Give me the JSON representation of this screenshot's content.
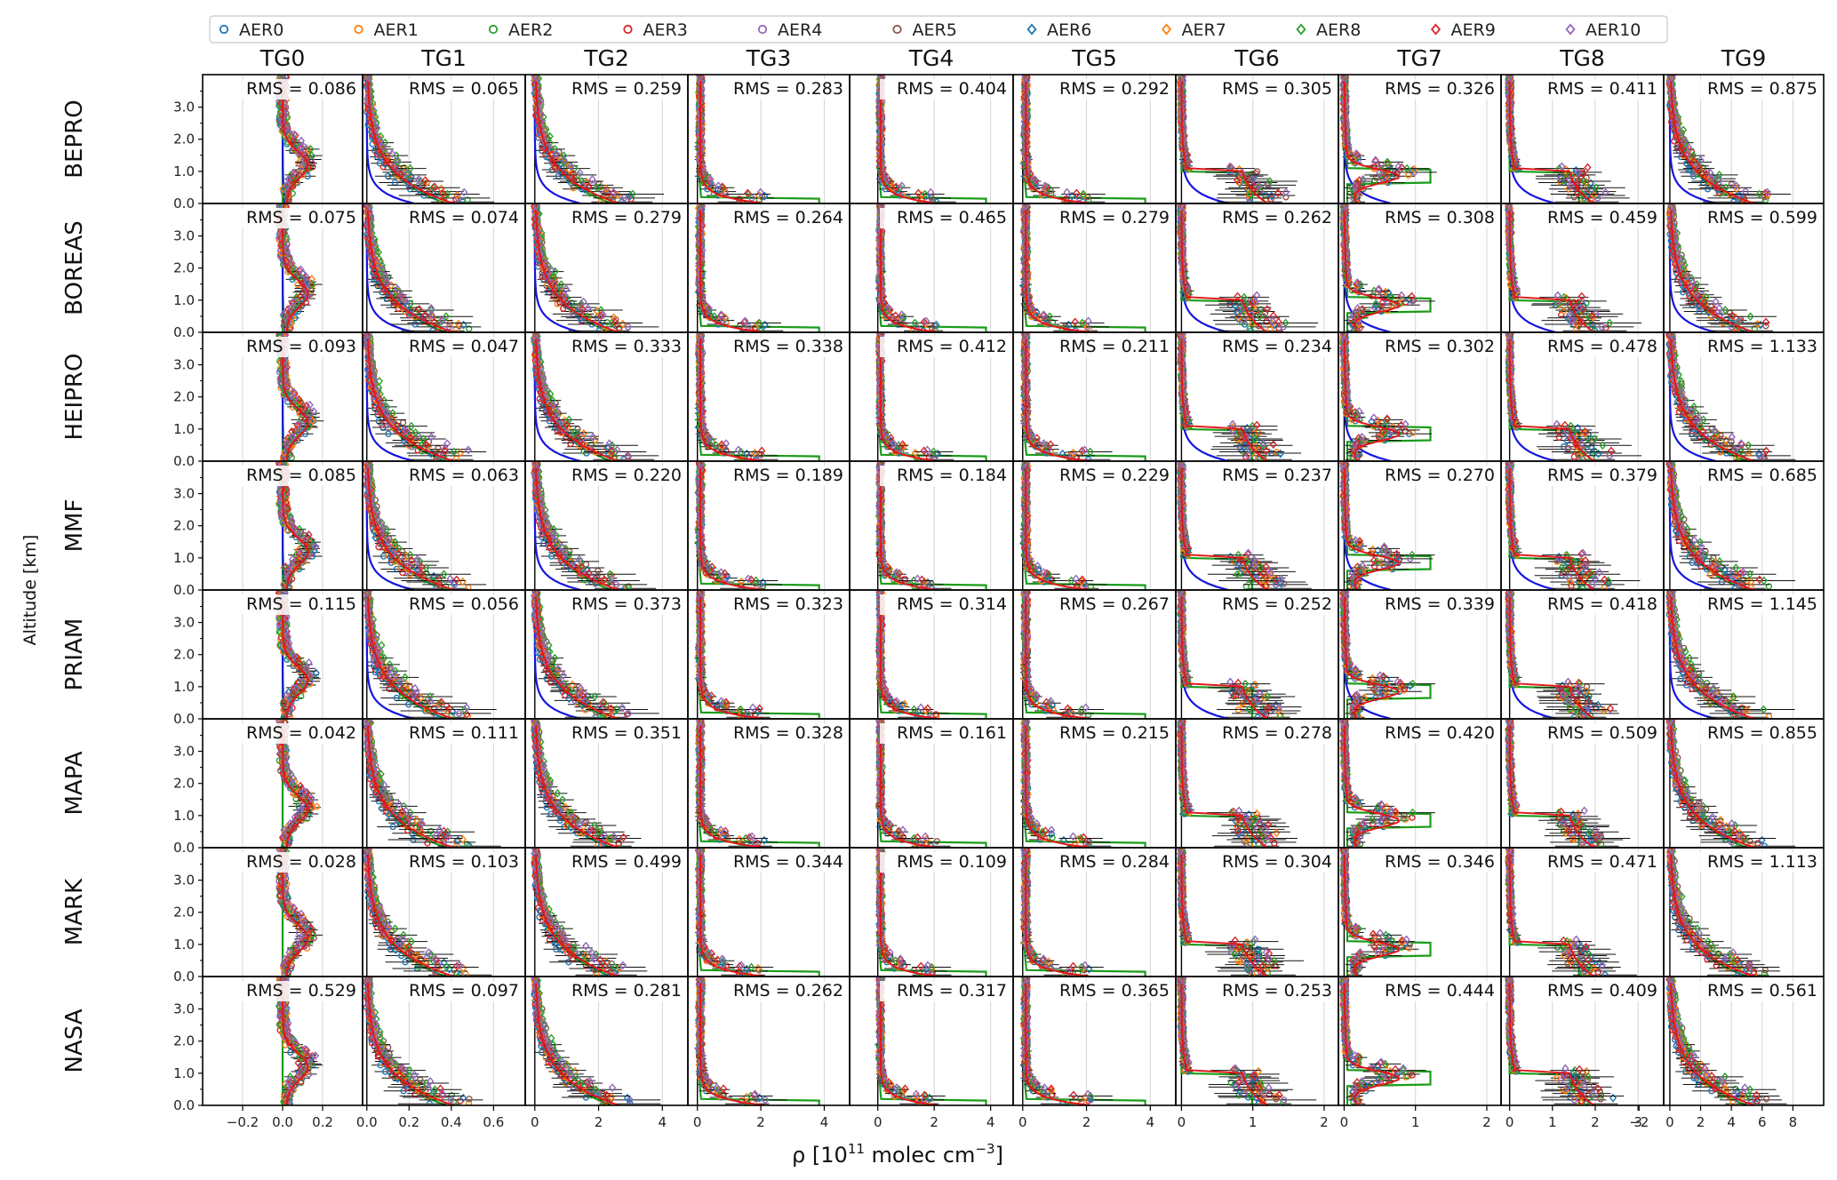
{
  "chart_data": {
    "type": "line",
    "ylabel": "Altitude [km]",
    "xlabel": "ρ [10",
    "xlabel_exp": "11",
    "xlabel_unit": " molec cm",
    "xlabel_unit_exp": "−3",
    "xlabel_close": "]",
    "ylim": [
      0,
      3.9
    ],
    "yticks": [
      "0.0",
      "1.0",
      "2.0",
      "3.0"
    ],
    "legend": {
      "placement": "top",
      "entries": [
        {
          "name": "AER0",
          "color": "#1f77b4",
          "marker": "circle"
        },
        {
          "name": "AER1",
          "color": "#ff7f0e",
          "marker": "circle"
        },
        {
          "name": "AER2",
          "color": "#2ca02c",
          "marker": "circle"
        },
        {
          "name": "AER3",
          "color": "#d62728",
          "marker": "circle"
        },
        {
          "name": "AER4",
          "color": "#9467bd",
          "marker": "circle"
        },
        {
          "name": "AER5",
          "color": "#8c564b",
          "marker": "circle"
        },
        {
          "name": "AER6",
          "color": "#1f77b4",
          "marker": "diamond"
        },
        {
          "name": "AER7",
          "color": "#ff7f0e",
          "marker": "diamond"
        },
        {
          "name": "AER8",
          "color": "#2ca02c",
          "marker": "diamond"
        },
        {
          "name": "AER9",
          "color": "#d62728",
          "marker": "diamond"
        },
        {
          "name": "AER10",
          "color": "#9467bd",
          "marker": "diamond"
        }
      ]
    },
    "rows": [
      "BEPRO",
      "BOREAS",
      "HEIPRO",
      "MMF",
      "PRIAM",
      "MAPA",
      "MARK",
      "NASA"
    ],
    "columns": [
      {
        "title": "TG0",
        "xlim": [
          -0.4,
          0.4
        ],
        "ticks": [
          -0.2,
          0,
          0.2
        ],
        "tick_labels": [
          "−0.2",
          "0.0",
          "0.2"
        ],
        "shape": "center"
      },
      {
        "title": "TG1",
        "xlim": [
          -0.02,
          0.75
        ],
        "ticks": [
          0,
          0.2,
          0.4,
          0.6
        ],
        "tick_labels": [
          "0.0",
          "0.2",
          "0.4",
          "0.6"
        ],
        "shape": "exp"
      },
      {
        "title": "TG2",
        "xlim": [
          -0.3,
          4.8
        ],
        "ticks": [
          0,
          2,
          4
        ],
        "tick_labels": [
          "0",
          "2",
          "4"
        ],
        "shape": "exp"
      },
      {
        "title": "TG3",
        "xlim": [
          -0.3,
          4.8
        ],
        "ticks": [
          0,
          2,
          4
        ],
        "tick_labels": [
          "0",
          "2",
          "4"
        ],
        "shape": "surface"
      },
      {
        "title": "TG4",
        "xlim": [
          -1.0,
          4.8
        ],
        "ticks": [
          0,
          2,
          4
        ],
        "tick_labels": [
          "0",
          "2",
          "4"
        ],
        "shape": "surface"
      },
      {
        "title": "TG5",
        "xlim": [
          -0.3,
          4.8
        ],
        "ticks": [
          0,
          2,
          4
        ],
        "tick_labels": [
          "0",
          "2",
          "4"
        ],
        "shape": "surface"
      },
      {
        "title": "TG6",
        "xlim": [
          -0.08,
          2.2
        ],
        "ticks": [
          0,
          1,
          2
        ],
        "tick_labels": [
          "0",
          "1",
          "2"
        ],
        "shape": "box"
      },
      {
        "title": "TG7",
        "xlim": [
          -0.08,
          2.2
        ],
        "ticks": [
          0,
          1,
          2
        ],
        "tick_labels": [
          "0",
          "1",
          "2"
        ],
        "shape": "elevated"
      },
      {
        "title": "TG8",
        "xlim": [
          -0.2,
          3.6
        ],
        "ticks": [
          0,
          1,
          2,
          3
        ],
        "tick_labels": [
          "0",
          "1",
          "2",
          "3"
        ],
        "shape": "box"
      },
      {
        "title": "TG9",
        "xlim": [
          -0.4,
          10.0
        ],
        "ticks": [
          -2,
          0,
          2,
          4,
          6,
          8
        ],
        "tick_labels": [
          "−2",
          "0",
          "2",
          "4",
          "6",
          "8"
        ],
        "shape": "exp"
      }
    ],
    "rms_values": [
      [
        "0.086",
        "0.065",
        "0.259",
        "0.283",
        "0.404",
        "0.292",
        "0.305",
        "0.326",
        "0.411",
        "0.875"
      ],
      [
        "0.075",
        "0.074",
        "0.279",
        "0.264",
        "0.465",
        "0.279",
        "0.262",
        "0.308",
        "0.459",
        "0.599"
      ],
      [
        "0.093",
        "0.047",
        "0.333",
        "0.338",
        "0.412",
        "0.211",
        "0.234",
        "0.302",
        "0.478",
        "1.133"
      ],
      [
        "0.085",
        "0.063",
        "0.220",
        "0.189",
        "0.184",
        "0.229",
        "0.237",
        "0.270",
        "0.379",
        "0.685"
      ],
      [
        "0.115",
        "0.056",
        "0.373",
        "0.323",
        "0.314",
        "0.267",
        "0.252",
        "0.339",
        "0.418",
        "1.145"
      ],
      [
        "0.042",
        "0.111",
        "0.351",
        "0.328",
        "0.161",
        "0.215",
        "0.278",
        "0.420",
        "0.509",
        "0.855"
      ],
      [
        "0.028",
        "0.103",
        "0.499",
        "0.344",
        "0.109",
        "0.284",
        "0.304",
        "0.346",
        "0.471",
        "1.113"
      ],
      [
        "0.529",
        "0.097",
        "0.281",
        "0.262",
        "0.317",
        "0.365",
        "0.253",
        "0.444",
        "0.409",
        "0.561"
      ]
    ],
    "rms_prefix": "RMS = "
  }
}
